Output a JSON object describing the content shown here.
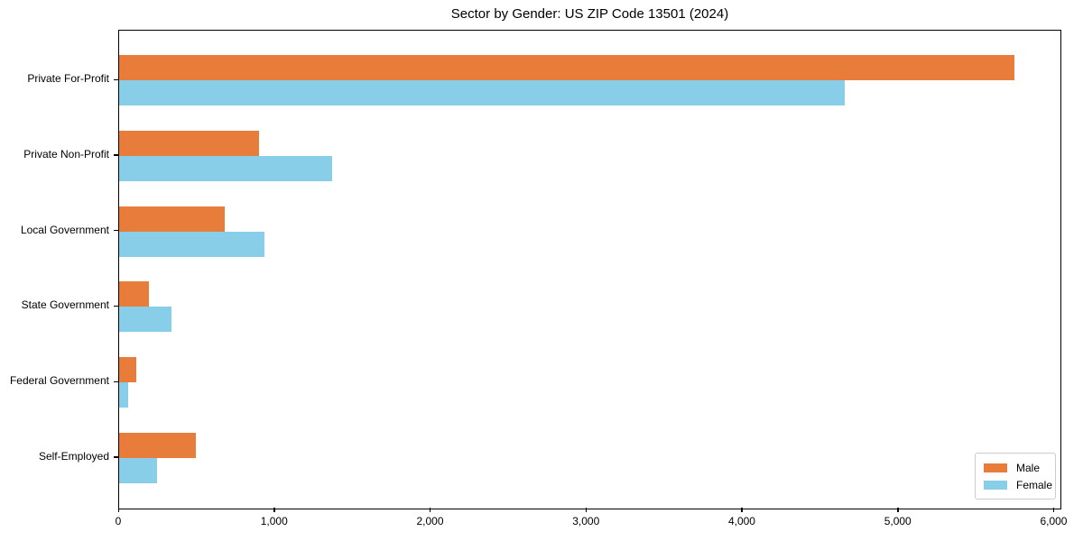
{
  "chart_data": {
    "type": "bar",
    "orientation": "horizontal",
    "title": "Sector by Gender: US ZIP Code 13501 (2024)",
    "categories": [
      "Private For-Profit",
      "Private Non-Profit",
      "Local Government",
      "State Government",
      "Federal Government",
      "Self-Employed"
    ],
    "series": [
      {
        "name": "Male",
        "color": "#e87d3b",
        "values": [
          5745,
          900,
          680,
          190,
          110,
          490
        ]
      },
      {
        "name": "Female",
        "color": "#89cee8",
        "values": [
          4655,
          1365,
          930,
          335,
          60,
          245
        ]
      }
    ],
    "xlabel": "",
    "ylabel": "",
    "xlim": [
      0,
      6032
    ],
    "xticks": [
      0,
      1000,
      2000,
      3000,
      4000,
      5000,
      6000
    ],
    "xtick_labels": [
      "0",
      "1,000",
      "2,000",
      "3,000",
      "4,000",
      "5,000",
      "6,000"
    ],
    "legend": {
      "position": "lower right",
      "entries": [
        "Male",
        "Female"
      ]
    },
    "grid": false
  }
}
